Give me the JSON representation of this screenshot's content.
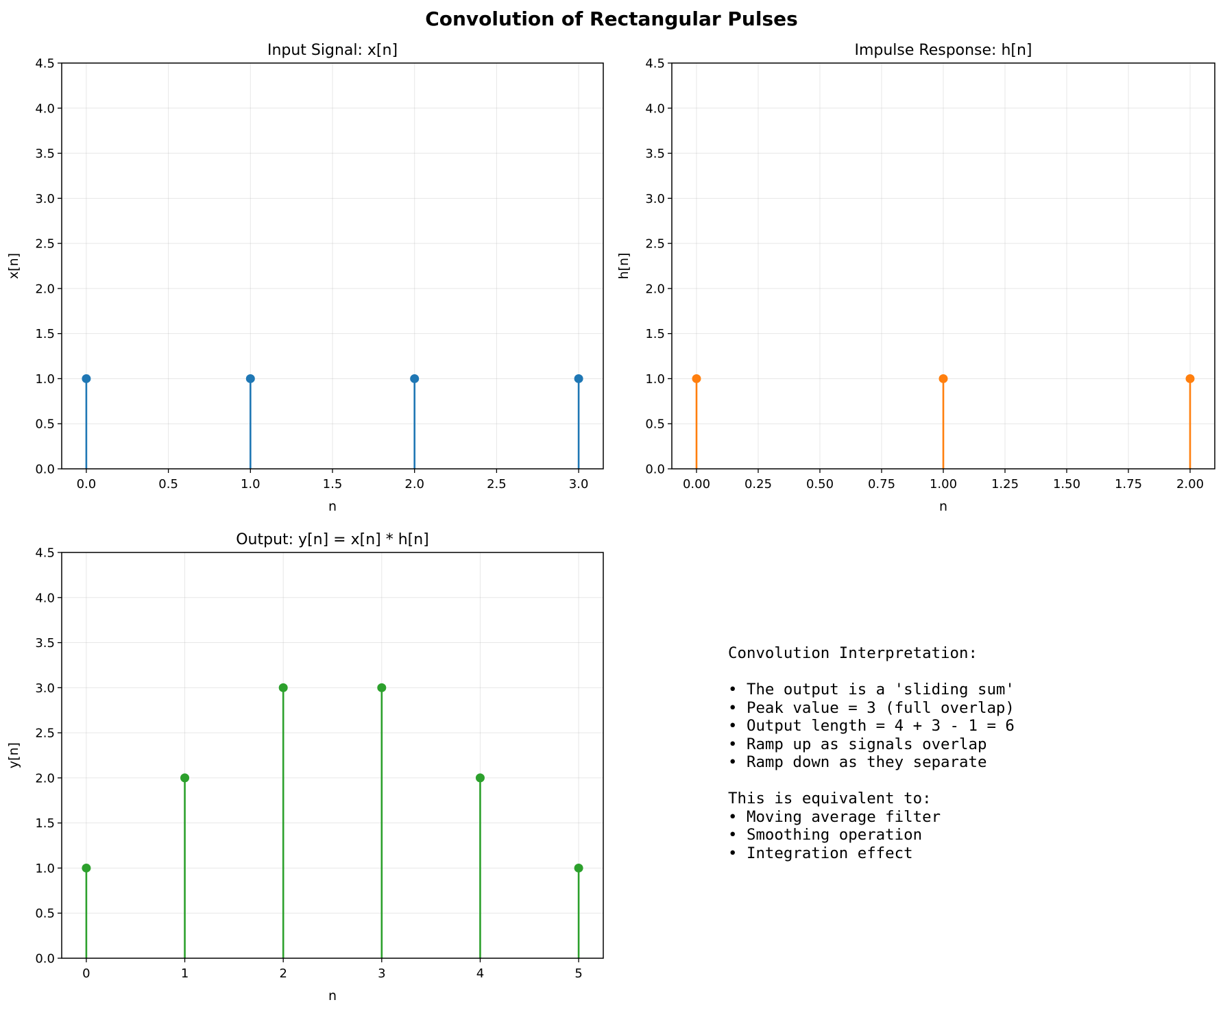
{
  "figure": {
    "title": "Convolution of Rectangular Pulses"
  },
  "chart_data": [
    {
      "type": "stem",
      "title": "Input Signal: x[n]",
      "xlabel": "n",
      "ylabel": "x[n]",
      "x": [
        0,
        1,
        2,
        3
      ],
      "values": [
        1,
        1,
        1,
        1
      ],
      "xlim": [
        -0.15,
        3.15
      ],
      "ylim": [
        0,
        4.5
      ],
      "xticks": [
        0,
        0.5,
        1,
        1.5,
        2,
        2.5,
        3
      ],
      "xtick_labels": [
        "0.0",
        "0.5",
        "1.0",
        "1.5",
        "2.0",
        "2.5",
        "3.0"
      ],
      "yticks": [
        0,
        0.5,
        1,
        1.5,
        2,
        2.5,
        3,
        3.5,
        4,
        4.5
      ],
      "ytick_labels": [
        "0.0",
        "0.5",
        "1.0",
        "1.5",
        "2.0",
        "2.5",
        "3.0",
        "3.5",
        "4.0",
        "4.5"
      ],
      "color": "#1f77b4",
      "grid": true
    },
    {
      "type": "stem",
      "title": "Impulse Response: h[n]",
      "xlabel": "n",
      "ylabel": "h[n]",
      "x": [
        0,
        1,
        2
      ],
      "values": [
        1,
        1,
        1
      ],
      "xlim": [
        -0.1,
        2.1
      ],
      "ylim": [
        0,
        4.5
      ],
      "xticks": [
        0,
        0.25,
        0.5,
        0.75,
        1,
        1.25,
        1.5,
        1.75,
        2
      ],
      "xtick_labels": [
        "0.00",
        "0.25",
        "0.50",
        "0.75",
        "1.00",
        "1.25",
        "1.50",
        "1.75",
        "2.00"
      ],
      "yticks": [
        0,
        0.5,
        1,
        1.5,
        2,
        2.5,
        3,
        3.5,
        4,
        4.5
      ],
      "ytick_labels": [
        "0.0",
        "0.5",
        "1.0",
        "1.5",
        "2.0",
        "2.5",
        "3.0",
        "3.5",
        "4.0",
        "4.5"
      ],
      "color": "#ff7f0e",
      "grid": true
    },
    {
      "type": "stem",
      "title": "Output: y[n] = x[n] * h[n]",
      "xlabel": "n",
      "ylabel": "y[n]",
      "x": [
        0,
        1,
        2,
        3,
        4,
        5
      ],
      "values": [
        1,
        2,
        3,
        3,
        2,
        1
      ],
      "xlim": [
        -0.25,
        5.25
      ],
      "ylim": [
        0,
        4.5
      ],
      "xticks": [
        0,
        1,
        2,
        3,
        4,
        5
      ],
      "xtick_labels": [
        "0",
        "1",
        "2",
        "3",
        "4",
        "5"
      ],
      "yticks": [
        0,
        0.5,
        1,
        1.5,
        2,
        2.5,
        3,
        3.5,
        4,
        4.5
      ],
      "ytick_labels": [
        "0.0",
        "0.5",
        "1.0",
        "1.5",
        "2.0",
        "2.5",
        "3.0",
        "3.5",
        "4.0",
        "4.5"
      ],
      "color": "#2ca02c",
      "grid": true
    }
  ],
  "notes": {
    "lines": [
      "Convolution Interpretation:",
      "",
      "• The output is a 'sliding sum'",
      "• Peak value = 3 (full overlap)",
      "• Output length = 4 + 3 - 1 = 6",
      "• Ramp up as signals overlap",
      "• Ramp down as they separate",
      "",
      "This is equivalent to:",
      "• Moving average filter",
      "• Smoothing operation",
      "• Integration effect"
    ]
  }
}
